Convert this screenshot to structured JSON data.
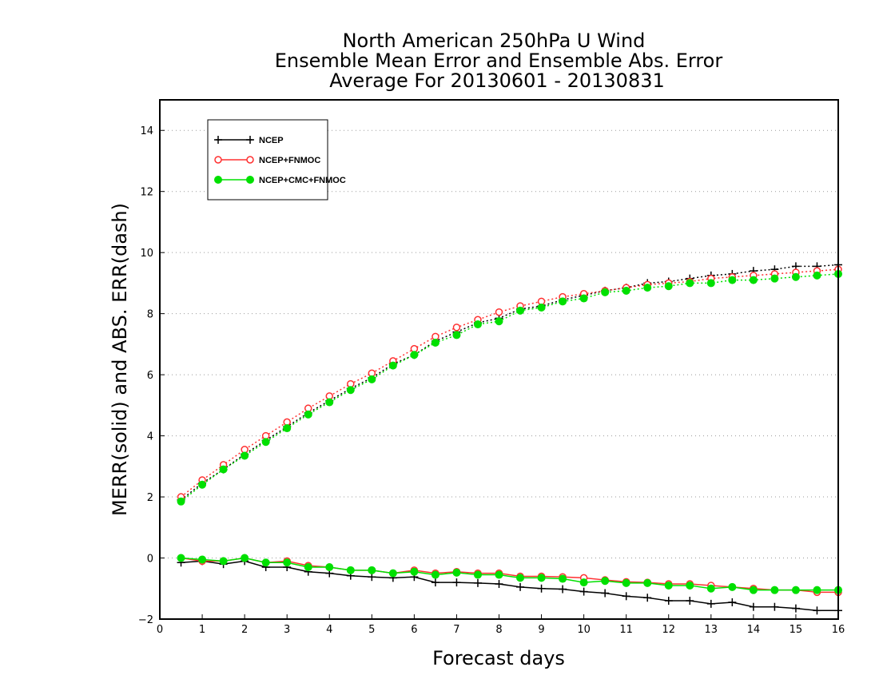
{
  "chart_data": {
    "type": "line",
    "title": [
      "North American 250hPa U Wind",
      "Ensemble Mean Error and Ensemble Abs. Error",
      "Average For 20130601 - 20130831"
    ],
    "xlabel": "Forecast days",
    "ylabel": "MERR(solid) and ABS. ERR(dash)",
    "xlim": [
      0,
      16
    ],
    "ylim": [
      -2,
      15
    ],
    "xticks": [
      0,
      1,
      2,
      3,
      4,
      5,
      6,
      7,
      8,
      9,
      10,
      11,
      12,
      13,
      14,
      15,
      16
    ],
    "yticks": [
      -2,
      0,
      2,
      4,
      6,
      8,
      10,
      12,
      14
    ],
    "grid": "horizontal dotted",
    "legend_position": "top-left",
    "x": [
      0.5,
      1,
      1.5,
      2,
      2.5,
      3,
      3.5,
      4,
      4.5,
      5,
      5.5,
      6,
      6.5,
      7,
      7.5,
      8,
      8.5,
      9,
      9.5,
      10,
      10.5,
      11,
      11.5,
      12,
      12.5,
      13,
      13.5,
      14,
      14.5,
      15,
      15.5,
      16
    ],
    "series": [
      {
        "name": "NCEP",
        "color": "#000000",
        "marker": "plus",
        "abs_err": [
          1.9,
          2.45,
          2.9,
          3.4,
          3.85,
          4.3,
          4.75,
          5.15,
          5.55,
          5.9,
          6.35,
          6.65,
          7.1,
          7.4,
          7.7,
          7.85,
          8.15,
          8.25,
          8.45,
          8.6,
          8.75,
          8.85,
          9.0,
          9.05,
          9.15,
          9.25,
          9.3,
          9.4,
          9.45,
          9.55,
          9.55,
          9.6
        ],
        "mean_err": [
          -0.15,
          -0.1,
          -0.2,
          -0.1,
          -0.3,
          -0.3,
          -0.45,
          -0.5,
          -0.58,
          -0.62,
          -0.65,
          -0.62,
          -0.8,
          -0.8,
          -0.82,
          -0.85,
          -0.95,
          -1.0,
          -1.02,
          -1.1,
          -1.15,
          -1.25,
          -1.3,
          -1.4,
          -1.4,
          -1.5,
          -1.45,
          -1.6,
          -1.6,
          -1.65,
          -1.72,
          -1.72
        ]
      },
      {
        "name": "NCEP+FNMOC",
        "color": "#ff3030",
        "marker": "open-circle",
        "abs_err": [
          2.0,
          2.55,
          3.05,
          3.55,
          4.0,
          4.45,
          4.9,
          5.3,
          5.7,
          6.05,
          6.45,
          6.85,
          7.25,
          7.55,
          7.8,
          8.05,
          8.25,
          8.4,
          8.55,
          8.65,
          8.75,
          8.85,
          8.95,
          9.0,
          9.05,
          9.15,
          9.2,
          9.25,
          9.3,
          9.35,
          9.4,
          9.45
        ],
        "mean_err": [
          0.0,
          -0.1,
          -0.1,
          0.0,
          -0.15,
          -0.1,
          -0.25,
          -0.3,
          -0.4,
          -0.4,
          -0.5,
          -0.4,
          -0.5,
          -0.45,
          -0.5,
          -0.5,
          -0.6,
          -0.6,
          -0.62,
          -0.65,
          -0.72,
          -0.78,
          -0.8,
          -0.85,
          -0.85,
          -0.9,
          -0.95,
          -1.0,
          -1.05,
          -1.05,
          -1.12,
          -1.12
        ]
      },
      {
        "name": "NCEP+CMC+FNMOC",
        "color": "#00e000",
        "marker": "filled-circle",
        "abs_err": [
          1.85,
          2.4,
          2.9,
          3.35,
          3.8,
          4.25,
          4.7,
          5.1,
          5.5,
          5.85,
          6.3,
          6.65,
          7.05,
          7.3,
          7.65,
          7.75,
          8.1,
          8.2,
          8.4,
          8.5,
          8.7,
          8.75,
          8.85,
          8.9,
          9.0,
          9.0,
          9.1,
          9.1,
          9.15,
          9.2,
          9.25,
          9.3
        ],
        "mean_err": [
          0.0,
          -0.05,
          -0.1,
          0.0,
          -0.15,
          -0.15,
          -0.3,
          -0.3,
          -0.4,
          -0.4,
          -0.5,
          -0.45,
          -0.55,
          -0.48,
          -0.55,
          -0.55,
          -0.65,
          -0.65,
          -0.68,
          -0.8,
          -0.75,
          -0.82,
          -0.82,
          -0.9,
          -0.9,
          -1.0,
          -0.95,
          -1.05,
          -1.05,
          -1.05,
          -1.05,
          -1.05
        ]
      }
    ]
  }
}
